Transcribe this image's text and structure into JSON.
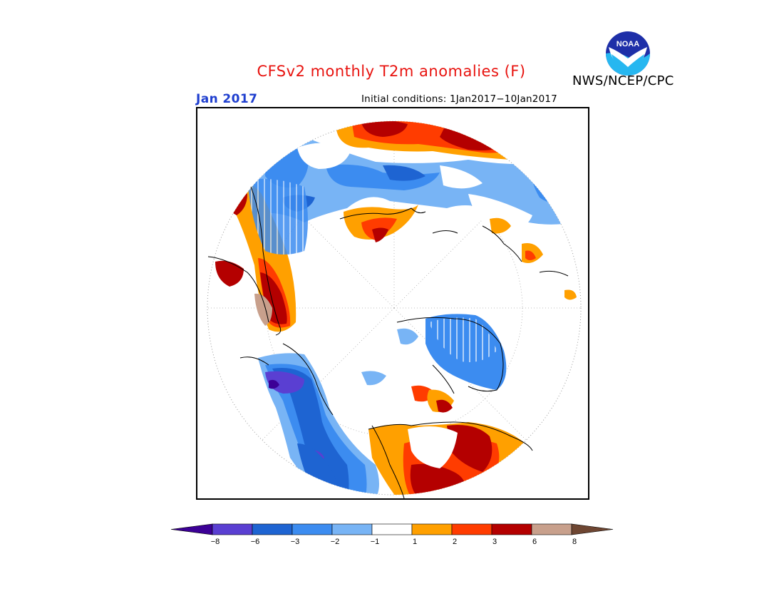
{
  "header": {
    "title": "CFSv2 monthly T2m anomalies (F)",
    "agency": "NWS/NCEP/CPC",
    "logo_text": "NOAA",
    "valid_month": "Jan 2017",
    "initial_conditions": "Initial conditions: 1Jan2017−10Jan2017"
  },
  "map": {
    "projection": "north-polar-stereographic",
    "field": "T2m anomaly",
    "units": "F"
  },
  "legend": {
    "ticks": [
      "−8",
      "−6",
      "−3",
      "−2",
      "−1",
      "1",
      "2",
      "3",
      "6",
      "8"
    ],
    "colors": [
      "#3c0096",
      "#5a3fd2",
      "#1e64d2",
      "#3c8cf0",
      "#78b4f5",
      "#ffffff",
      "#ffa000",
      "#ff3c00",
      "#b40000",
      "#c8a08c",
      "#6e4632"
    ]
  }
}
